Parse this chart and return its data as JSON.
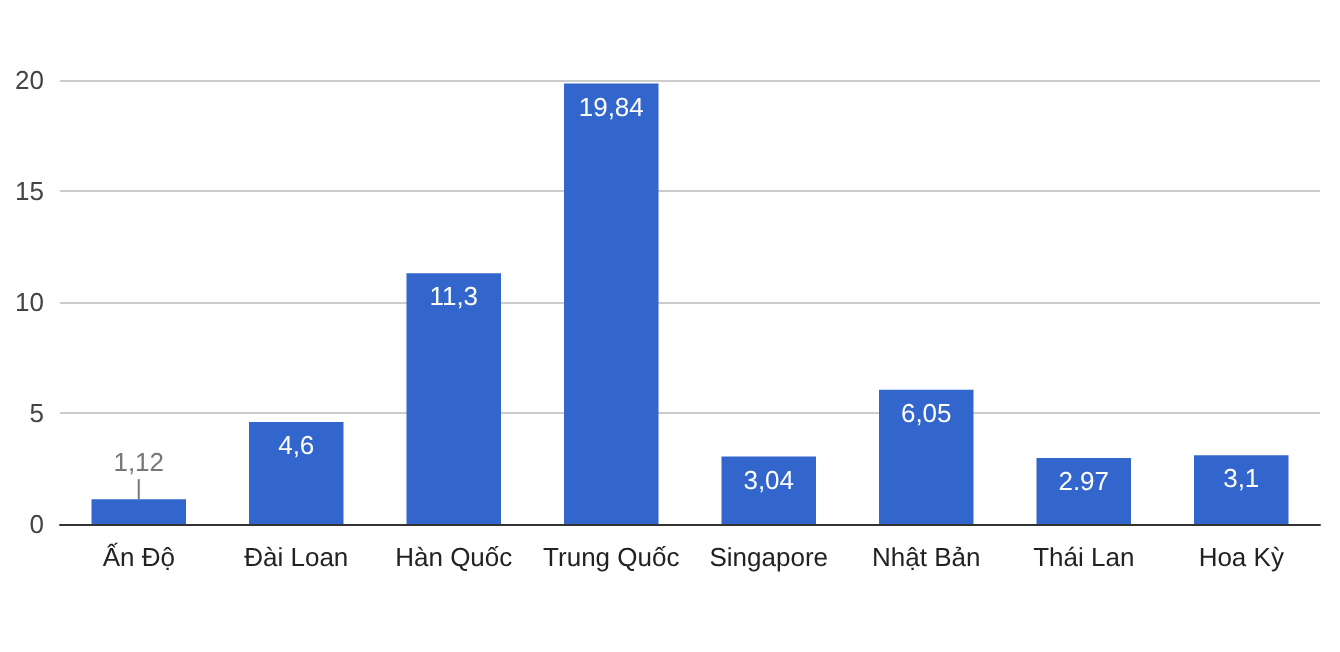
{
  "chart_data": {
    "type": "bar",
    "categories": [
      "Ấn Độ",
      "Đài Loan",
      "Hàn Quốc",
      "Trung Quốc",
      "Singapore",
      "Nhật Bản",
      "Thái Lan",
      "Hoa Kỳ"
    ],
    "values": [
      1.12,
      4.6,
      11.3,
      19.84,
      3.04,
      6.05,
      2.97,
      3.1
    ],
    "value_labels": [
      "1,12",
      "4,6",
      "11,3",
      "19,84",
      "3,04",
      "6,05",
      "2.97",
      "3,1"
    ],
    "color": "#3366cc",
    "ylim": [
      0,
      20
    ],
    "yticks": [
      0,
      5,
      10,
      15,
      20
    ],
    "grid": "y"
  }
}
